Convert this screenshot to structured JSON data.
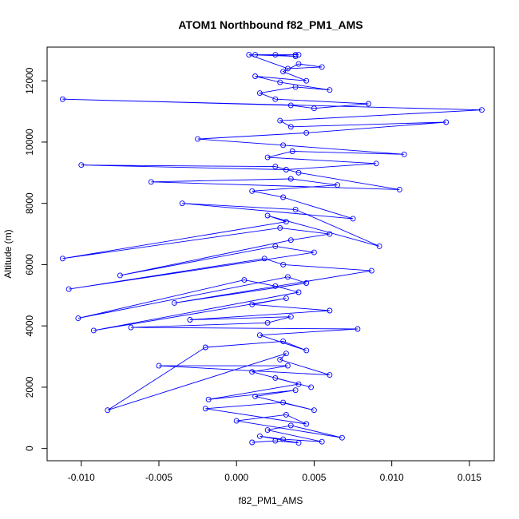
{
  "chart_data": {
    "type": "scatter",
    "title": "ATOM1 Northbound f82_PM1_AMS",
    "xlabel": "f82_PM1_AMS",
    "ylabel": "Altitude (m)",
    "xlim": [
      -0.0122,
      0.0166
    ],
    "ylim": [
      -400,
      13100
    ],
    "xticks": [
      -0.01,
      -0.005,
      0.0,
      0.005,
      0.01,
      0.015
    ],
    "xtick_labels": [
      "-0.010",
      "-0.005",
      "0.000",
      "0.005",
      "0.010",
      "0.015"
    ],
    "yticks": [
      0,
      2000,
      4000,
      6000,
      8000,
      10000,
      12000
    ],
    "ytick_labels": [
      "0",
      "2000",
      "4000",
      "6000",
      "8000",
      "10000",
      "12000"
    ],
    "color": "#0000FF",
    "series": [
      {
        "style": "line+points",
        "x": [
          0.001,
          0.0025,
          0.004,
          0.0015,
          0.003,
          0.0055,
          0.002,
          0.0035,
          0.0068,
          0.0,
          0.0032,
          0.0045,
          -0.002,
          0.003,
          0.005,
          0.0012,
          0.0038,
          -0.0018,
          0.004,
          0.0025,
          0.0048,
          0.001,
          0.0033,
          -0.005,
          0.006,
          0.0028,
          0.0032,
          -0.0083,
          -0.002,
          0.003,
          0.0045,
          0.0015,
          0.0078,
          -0.0068,
          0.002,
          0.0035,
          -0.003,
          0.006,
          0.001,
          0.0032,
          -0.0092,
          0.004,
          0.0025,
          0.0005,
          -0.0102,
          0.0033,
          0.0045,
          -0.004,
          0.0087,
          0.003,
          0.0018,
          -0.0108,
          0.005,
          0.0025,
          -0.0075,
          0.0035,
          0.006,
          0.0028,
          -0.0112,
          0.0032,
          0.002,
          0.0092,
          0.0038,
          -0.0035,
          0.0075,
          0.003,
          0.001,
          0.0065,
          0.0035,
          -0.0055,
          0.0105,
          0.004,
          0.0025,
          -0.01,
          0.0032,
          0.009,
          0.002,
          0.0036,
          0.0108,
          0.003,
          -0.0025,
          0.0045,
          0.0135,
          0.0035,
          0.0028,
          0.0158,
          -0.0112,
          0.0035,
          0.005,
          0.0085,
          0.0025,
          0.0015,
          0.0038,
          0.006,
          0.0028,
          0.0012,
          0.0045,
          0.003,
          0.004,
          0.0055,
          0.0033,
          0.0008,
          0.0038,
          0.0025,
          0.004,
          0.0012,
          0.0038
        ],
        "y": [
          200,
          250,
          180,
          400,
          300,
          220,
          600,
          750,
          350,
          900,
          1100,
          800,
          1300,
          1500,
          1250,
          1700,
          1900,
          1600,
          2100,
          2300,
          2000,
          2500,
          2700,
          2700,
          2400,
          2900,
          3100,
          1250,
          3300,
          3500,
          3200,
          3700,
          3900,
          3950,
          4100,
          4300,
          4200,
          4500,
          4700,
          4900,
          3850,
          5100,
          5300,
          5500,
          4250,
          5600,
          5400,
          4750,
          5800,
          6000,
          6200,
          5200,
          6400,
          6600,
          5650,
          6800,
          7000,
          7200,
          6200,
          7400,
          7600,
          6600,
          7800,
          8000,
          7500,
          8200,
          8400,
          8600,
          8800,
          8700,
          8450,
          9000,
          9200,
          9250,
          9100,
          9300,
          9500,
          9700,
          9600,
          9900,
          10100,
          10300,
          10650,
          10500,
          10700,
          11050,
          11400,
          11200,
          11100,
          11250,
          11400,
          11600,
          11800,
          11700,
          11950,
          12150,
          12000,
          12300,
          12550,
          12450,
          12400,
          12850,
          12800,
          12850,
          12850,
          12850,
          12850
        ]
      }
    ]
  }
}
